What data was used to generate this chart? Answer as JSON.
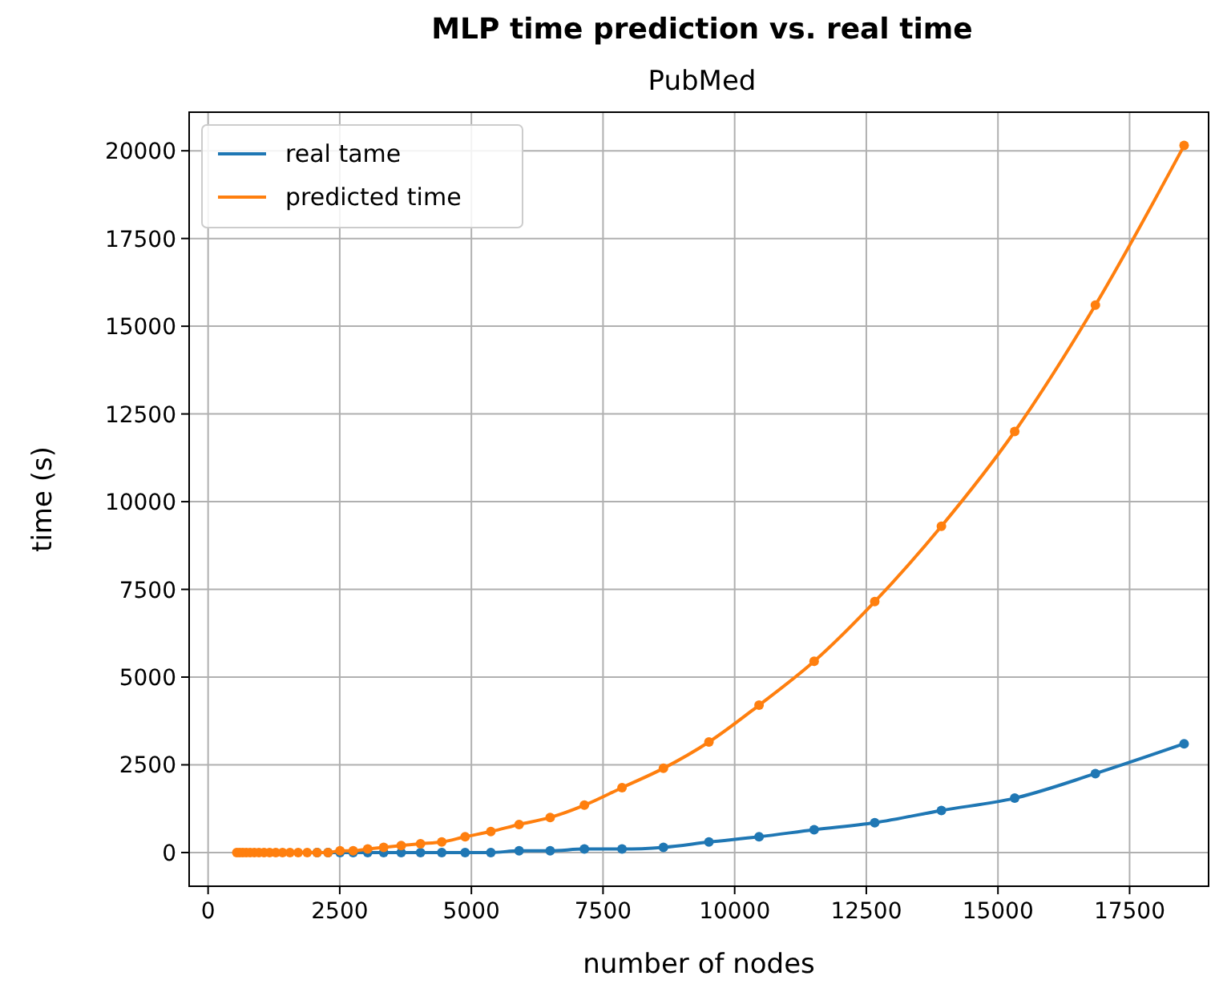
{
  "chart_data": {
    "type": "line",
    "title": "MLP time prediction vs. real time",
    "subtitle": "PubMed",
    "xlabel": "number of nodes",
    "ylabel": "time (s)",
    "x": [
      545,
      599,
      659,
      725,
      798,
      878,
      965,
      1062,
      1168,
      1285,
      1414,
      1555,
      1711,
      1882,
      2070,
      2277,
      2505,
      2755,
      3031,
      3334,
      3667,
      4034,
      4437,
      4881,
      5369,
      5906,
      6496,
      7146,
      7861,
      8647,
      9511,
      10463,
      11509,
      12660,
      13926,
      15318,
      16850,
      18535
    ],
    "series": [
      {
        "name": "real tame",
        "color": "#1f77b4",
        "values": [
          null,
          null,
          null,
          null,
          null,
          null,
          null,
          null,
          null,
          null,
          null,
          null,
          null,
          null,
          0,
          0,
          0,
          0,
          0,
          0,
          0,
          0,
          0,
          0,
          0,
          50,
          50,
          100,
          100,
          150,
          300,
          450,
          650,
          850,
          1200,
          1550,
          2250,
          3100
        ]
      },
      {
        "name": "predicted time",
        "color": "#ff7f0e",
        "values": [
          0,
          0,
          0,
          0,
          0,
          0,
          0,
          0,
          0,
          0,
          0,
          0,
          0,
          0,
          0,
          0,
          50,
          50,
          100,
          150,
          200,
          250,
          300,
          450,
          600,
          800,
          1000,
          1350,
          1850,
          2400,
          3150,
          4200,
          5450,
          7150,
          9300,
          12000,
          15600,
          20150
        ]
      }
    ],
    "xlim": [
      -360,
      19000
    ],
    "ylim": [
      -960,
      21100
    ],
    "xticks": [
      0,
      2500,
      5000,
      7500,
      10000,
      12500,
      15000,
      17500
    ],
    "yticks": [
      0,
      2500,
      5000,
      7500,
      10000,
      12500,
      15000,
      17500,
      20000
    ],
    "grid": true,
    "legend": "top left",
    "marker": "circle",
    "line_style": "solid"
  }
}
